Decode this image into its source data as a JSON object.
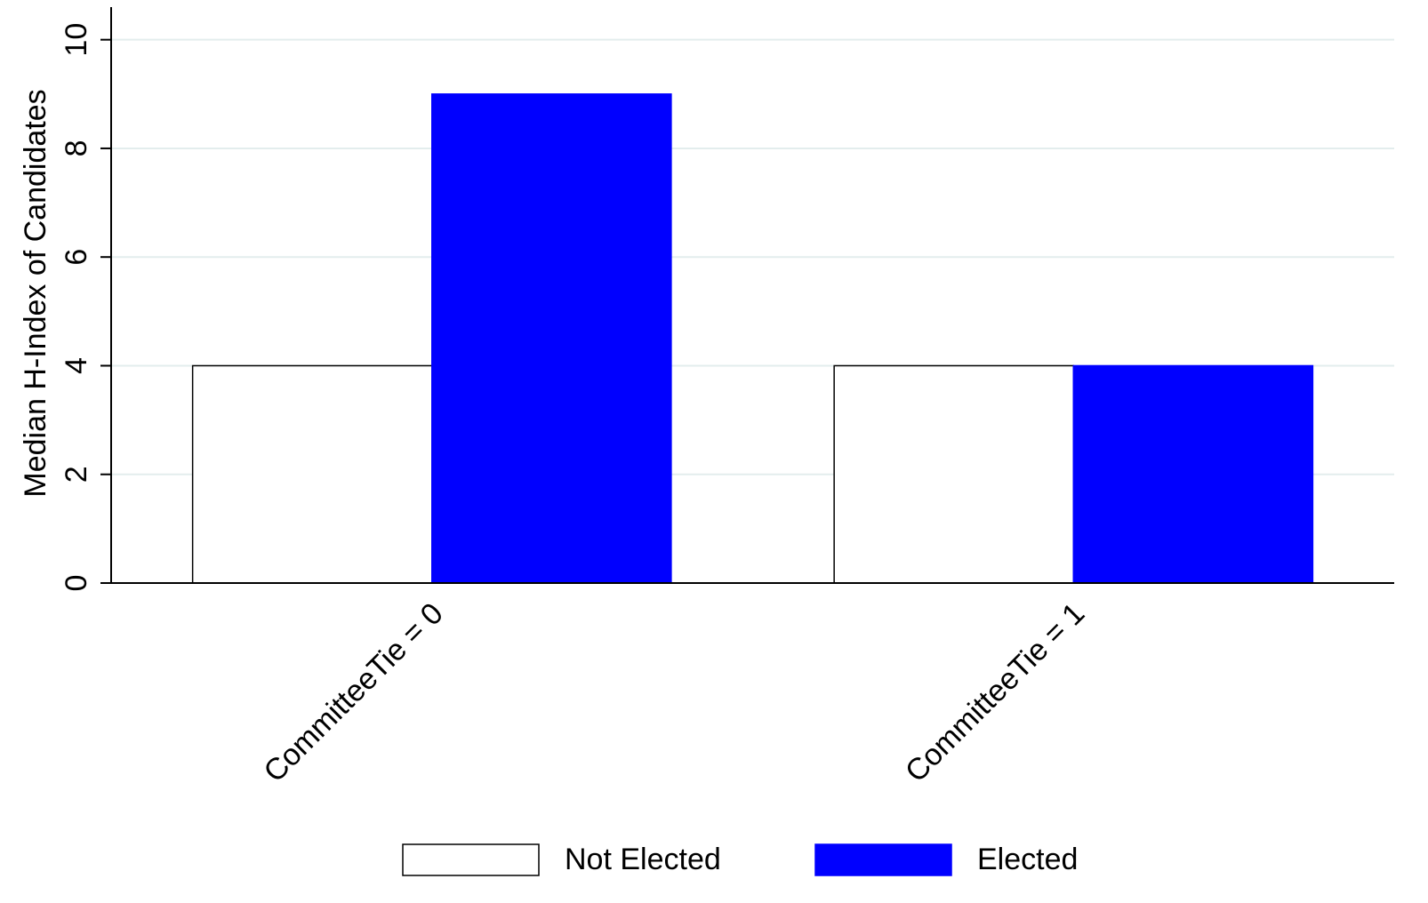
{
  "chart_data": {
    "type": "bar",
    "ylabel": "Median H-Index of Candidates",
    "categories": [
      "CommitteeTie = 0",
      "CommitteeTie = 1"
    ],
    "series": [
      {
        "name": "Not Elected",
        "color": "#ffffff",
        "values": [
          4,
          4
        ]
      },
      {
        "name": "Elected",
        "color": "#0000ff",
        "values": [
          9,
          4
        ]
      }
    ],
    "ylim": [
      0,
      10.6
    ],
    "yticks": [
      0,
      2,
      4,
      6,
      8,
      10
    ],
    "grid": true,
    "legend": "bottom"
  }
}
